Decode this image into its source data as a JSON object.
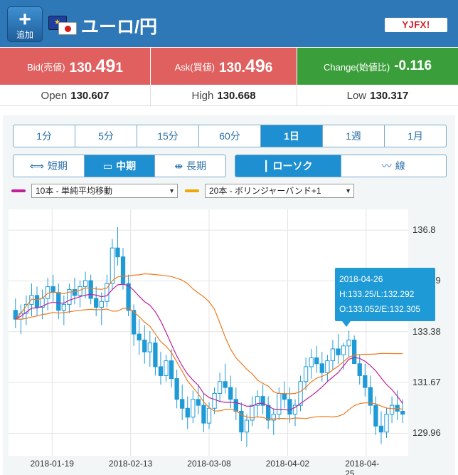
{
  "header": {
    "add_label": "追加",
    "add_icon": "plus-icon",
    "pair": "ユーロ/円",
    "logo": "YJFX!"
  },
  "rates": {
    "bid": {
      "name": "Bid(売値)",
      "prefix": "130.",
      "big": "49",
      "suffix": "1"
    },
    "ask": {
      "name": "Ask(買値)",
      "prefix": "130.",
      "big": "49",
      "suffix": "6"
    },
    "change": {
      "name": "Change(始値比)",
      "value": "-0.116"
    }
  },
  "stats": {
    "open": {
      "name": "Open",
      "value": "130.607"
    },
    "high": {
      "name": "High",
      "value": "130.668"
    },
    "low": {
      "name": "Low",
      "value": "130.317"
    }
  },
  "timeframes": [
    "1分",
    "5分",
    "15分",
    "60分",
    "1日",
    "1週",
    "1月"
  ],
  "active_timeframe": "1日",
  "terms": [
    {
      "label": "短期",
      "icon": "short-term-icon"
    },
    {
      "label": "中期",
      "icon": "mid-term-icon"
    },
    {
      "label": "長期",
      "icon": "long-term-icon"
    }
  ],
  "chart_types": [
    {
      "label": "ローソク",
      "icon": "candlestick-icon"
    },
    {
      "label": "線",
      "icon": "line-chart-icon"
    }
  ],
  "indicators": [
    {
      "value": "10本 - 単純平均移動",
      "color": "#c0209a"
    },
    {
      "value": "20本 - ボリンジャーバンド+1",
      "color": "#f0a800"
    }
  ],
  "tooltip": {
    "date": "2018-04-26",
    "hl": "H:133.25/L:132.292",
    "oe": "O:133.052/E:132.305"
  },
  "chart_data": {
    "type": "candlestick",
    "y_ticks": [
      "136.8",
      "135.09",
      "133.38",
      "131.67",
      "129.96"
    ],
    "ylim": [
      129.2,
      137.5
    ],
    "x_ticks": [
      "2018-01-19",
      "2018-02-13",
      "2018-03-08",
      "2018-04-02",
      "2018-04-25"
    ],
    "up_color": "#1e9ad6",
    "down_color": "#1e9ad6",
    "sma_color": "#c0209a",
    "band_color": "#ee7a20",
    "candles": [
      [
        134.1,
        134.5,
        133.5,
        133.8
      ],
      [
        133.8,
        134.3,
        133.3,
        134.0
      ],
      [
        134.0,
        134.6,
        133.6,
        134.3
      ],
      [
        134.3,
        135.0,
        133.9,
        134.6
      ],
      [
        134.6,
        134.9,
        133.9,
        134.2
      ],
      [
        134.2,
        134.8,
        133.8,
        134.5
      ],
      [
        134.5,
        135.2,
        134.1,
        134.9
      ],
      [
        134.9,
        135.3,
        134.4,
        134.7
      ],
      [
        134.7,
        135.0,
        133.8,
        134.1
      ],
      [
        134.1,
        134.6,
        133.6,
        134.3
      ],
      [
        134.3,
        135.0,
        134.0,
        134.8
      ],
      [
        134.8,
        135.2,
        134.3,
        134.6
      ],
      [
        134.6,
        135.1,
        134.2,
        134.9
      ],
      [
        134.9,
        135.4,
        134.5,
        135.1
      ],
      [
        135.1,
        135.3,
        134.3,
        134.5
      ],
      [
        134.5,
        134.9,
        133.9,
        134.2
      ],
      [
        134.2,
        134.7,
        133.6,
        134.4
      ],
      [
        134.4,
        135.3,
        134.2,
        135.0
      ],
      [
        135.0,
        136.5,
        134.8,
        136.2
      ],
      [
        136.2,
        136.9,
        135.6,
        135.9
      ],
      [
        135.9,
        136.2,
        134.8,
        135.0
      ],
      [
        135.0,
        135.3,
        133.9,
        134.1
      ],
      [
        134.1,
        134.3,
        132.9,
        133.3
      ],
      [
        133.3,
        133.8,
        132.6,
        133.1
      ],
      [
        133.1,
        133.6,
        132.3,
        132.7
      ],
      [
        132.7,
        133.4,
        132.2,
        133.0
      ],
      [
        133.0,
        133.2,
        131.9,
        132.2
      ],
      [
        132.2,
        132.7,
        131.6,
        131.9
      ],
      [
        131.9,
        132.6,
        131.7,
        132.4
      ],
      [
        132.4,
        132.8,
        131.5,
        131.8
      ],
      [
        131.8,
        132.1,
        130.8,
        131.1
      ],
      [
        131.1,
        131.6,
        130.4,
        130.8
      ],
      [
        130.8,
        131.2,
        130.1,
        130.5
      ],
      [
        130.5,
        131.4,
        130.3,
        131.1
      ],
      [
        131.1,
        131.6,
        130.6,
        130.9
      ],
      [
        130.9,
        131.3,
        130.0,
        130.3
      ],
      [
        130.3,
        131.0,
        130.1,
        130.8
      ],
      [
        130.8,
        131.5,
        130.6,
        131.3
      ],
      [
        131.3,
        132.0,
        131.0,
        131.7
      ],
      [
        131.7,
        132.3,
        131.3,
        131.5
      ],
      [
        131.5,
        131.9,
        130.8,
        131.1
      ],
      [
        131.1,
        131.5,
        130.4,
        130.7
      ],
      [
        130.7,
        131.0,
        129.7,
        130.0
      ],
      [
        130.0,
        130.6,
        129.5,
        130.4
      ],
      [
        130.4,
        131.2,
        130.2,
        130.9
      ],
      [
        130.9,
        131.4,
        130.5,
        131.2
      ],
      [
        131.2,
        131.6,
        130.6,
        130.9
      ],
      [
        130.9,
        131.2,
        130.1,
        130.4
      ],
      [
        130.4,
        130.8,
        129.9,
        130.6
      ],
      [
        130.6,
        131.5,
        130.4,
        131.3
      ],
      [
        131.3,
        131.7,
        130.8,
        131.1
      ],
      [
        131.1,
        131.5,
        130.3,
        130.6
      ],
      [
        130.6,
        131.1,
        130.2,
        130.9
      ],
      [
        130.9,
        131.9,
        130.7,
        131.7
      ],
      [
        131.7,
        132.5,
        131.4,
        132.2
      ],
      [
        132.2,
        132.8,
        131.8,
        132.5
      ],
      [
        132.5,
        132.9,
        132.0,
        132.3
      ],
      [
        132.3,
        132.7,
        131.7,
        132.0
      ],
      [
        132.0,
        132.6,
        131.7,
        132.4
      ],
      [
        132.4,
        133.1,
        132.1,
        132.8
      ],
      [
        132.8,
        133.3,
        132.3,
        132.6
      ],
      [
        132.6,
        133.0,
        132.1,
        132.9
      ],
      [
        132.9,
        133.4,
        132.5,
        133.1
      ],
      [
        133.1,
        133.25,
        132.292,
        132.305
      ],
      [
        132.3,
        132.6,
        131.6,
        131.9
      ],
      [
        131.9,
        132.3,
        131.2,
        131.5
      ],
      [
        131.5,
        131.9,
        130.6,
        130.9
      ],
      [
        130.9,
        131.2,
        129.9,
        130.2
      ],
      [
        130.2,
        130.7,
        129.6,
        130.0
      ],
      [
        130.0,
        130.8,
        129.8,
        130.6
      ],
      [
        130.6,
        131.2,
        130.3,
        130.9
      ],
      [
        130.9,
        131.4,
        130.4,
        130.7
      ],
      [
        130.7,
        131.1,
        130.3,
        130.6
      ]
    ]
  }
}
